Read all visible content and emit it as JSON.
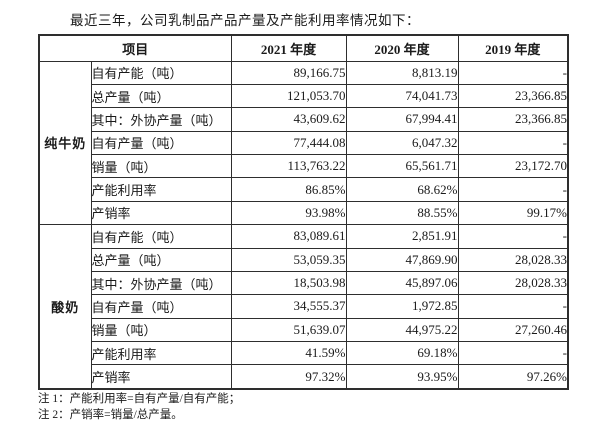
{
  "page": {
    "title": "最近三年，公司乳制品产品产量及产能利用率情况如下："
  },
  "table": {
    "header": {
      "item_col": "项目",
      "year_cols": [
        "2021 年度",
        "2020 年度",
        "2019 年度"
      ]
    },
    "groups": [
      {
        "name": "纯牛奶",
        "rows": [
          {
            "label": "自有产能（吨）",
            "values": [
              "89,166.75",
              "8,813.19",
              "-"
            ]
          },
          {
            "label": "总产量（吨）",
            "values": [
              "121,053.70",
              "74,041.73",
              "23,366.85"
            ]
          },
          {
            "label": "其中：外协产量（吨）",
            "values": [
              "43,609.62",
              "67,994.41",
              "23,366.85"
            ]
          },
          {
            "label": "自有产量（吨）",
            "values": [
              "77,444.08",
              "6,047.32",
              "-"
            ]
          },
          {
            "label": "销量（吨）",
            "values": [
              "113,763.22",
              "65,561.71",
              "23,172.70"
            ]
          },
          {
            "label": "产能利用率",
            "values": [
              "86.85%",
              "68.62%",
              "-"
            ]
          },
          {
            "label": "产销率",
            "values": [
              "93.98%",
              "88.55%",
              "99.17%"
            ]
          }
        ]
      },
      {
        "name": "酸奶",
        "rows": [
          {
            "label": "自有产能（吨）",
            "values": [
              "83,089.61",
              "2,851.91",
              "-"
            ]
          },
          {
            "label": "总产量（吨）",
            "values": [
              "53,059.35",
              "47,869.90",
              "28,028.33"
            ]
          },
          {
            "label": "其中：外协产量（吨）",
            "values": [
              "18,503.98",
              "45,897.06",
              "28,028.33"
            ]
          },
          {
            "label": "自有产量（吨）",
            "values": [
              "34,555.37",
              "1,972.85",
              "-"
            ]
          },
          {
            "label": "销量（吨）",
            "values": [
              "51,639.07",
              "44,975.22",
              "27,260.46"
            ]
          },
          {
            "label": "产能利用率",
            "values": [
              "41.59%",
              "69.18%",
              "-"
            ]
          },
          {
            "label": "产销率",
            "values": [
              "97.32%",
              "93.95%",
              "97.26%"
            ]
          }
        ]
      }
    ]
  },
  "notes": [
    "注 1：产能利用率=自有产量/自有产能；",
    "注 2：产销率=销量/总产量。"
  ],
  "colors": {
    "text": "#1a1a1a",
    "border": "#2e2e2e",
    "background": "#ffffff"
  }
}
